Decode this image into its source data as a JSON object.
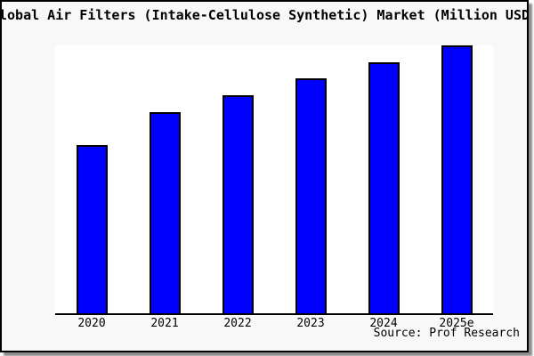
{
  "title": "Global Air Filters (Intake-Cellulose Synthetic) Market (Million USD)",
  "source_label": "Source: Prof Research",
  "colors": {
    "bar_fill": "#0000ff",
    "bar_border": "#000000",
    "card_bg": "#f8f8f8",
    "plot_bg": "#ffffff",
    "axis": "#000000",
    "shadow": "#8c8c8c"
  },
  "chart_data": {
    "type": "bar",
    "title": "Global Air Filters (Intake-Cellulose Synthetic) Market (Million USD)",
    "categories": [
      "2020",
      "2021",
      "2022",
      "2023",
      "2024",
      "2025e"
    ],
    "values": [
      62.8,
      75.1,
      81.4,
      87.7,
      93.7,
      100
    ],
    "ylim": [
      0,
      100
    ],
    "values_note": "Chart shows no y-axis tick labels or gridlines; values are relative bar heights estimated with tallest bar (2025e) = 100.",
    "xlabel": "",
    "ylabel": "",
    "gridlines": false,
    "legend_position": "none",
    "y_axis_visible": false,
    "source_annotation": "Source: Prof Research"
  }
}
